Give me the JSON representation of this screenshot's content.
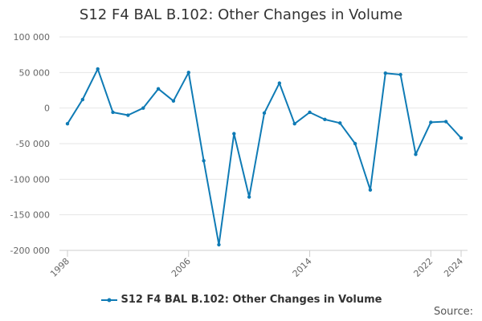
{
  "chart_data": {
    "type": "line",
    "title": "S12 F4 BAL B.102: Other Changes in Volume",
    "xlabel": "",
    "ylabel": "",
    "ylim": [
      -200000,
      100000
    ],
    "yticks": [
      100000,
      50000,
      0,
      -50000,
      -100000,
      -150000,
      -200000
    ],
    "ytick_labels": [
      "100 000",
      "50 000",
      "0",
      "-50 000",
      "-100 000",
      "-150 000",
      "-200 000"
    ],
    "xlim": [
      1998,
      2024
    ],
    "xticks": [
      1998,
      2006,
      2014,
      2022,
      2024
    ],
    "xtick_labels": [
      "1998",
      "2006",
      "2014",
      "2022",
      "2024"
    ],
    "grid": "horizontal",
    "legend_position": "bottom",
    "series": [
      {
        "name": "S12 F4 BAL B.102: Other Changes in Volume",
        "color": "#0f7bb5",
        "x": [
          1998,
          1999,
          2000,
          2001,
          2002,
          2003,
          2004,
          2005,
          2006,
          2007,
          2008,
          2009,
          2010,
          2011,
          2012,
          2013,
          2014,
          2015,
          2016,
          2017,
          2018,
          2019,
          2020,
          2021,
          2022,
          2023,
          2024
        ],
        "y": [
          -22000,
          12000,
          55000,
          -6000,
          -10000,
          0,
          27000,
          10000,
          50000,
          -74000,
          -192000,
          -36000,
          -125000,
          -7000,
          35000,
          -22000,
          -6000,
          -16000,
          -21000,
          -50000,
          -115000,
          49000,
          47000,
          -65000,
          -20000,
          -19000,
          -42000
        ]
      }
    ]
  },
  "legend": {
    "label": "S12 F4 BAL B.102: Other Changes in Volume"
  },
  "footer": {
    "source_label": "Source:"
  }
}
